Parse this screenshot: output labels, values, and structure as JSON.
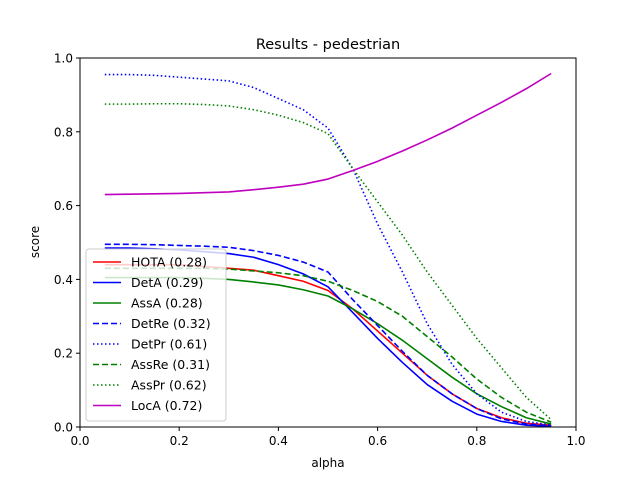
{
  "chart_data": {
    "type": "line",
    "title": "Results - pedestrian",
    "xlabel": "alpha",
    "ylabel": "score",
    "xlim": [
      0.0,
      1.0
    ],
    "ylim": [
      0.0,
      1.0
    ],
    "xticks": [
      "0.0",
      "0.2",
      "0.4",
      "0.6",
      "0.8",
      "1.0"
    ],
    "yticks": [
      "0.0",
      "0.2",
      "0.4",
      "0.6",
      "0.8",
      "1.0"
    ],
    "grid": false,
    "legend_position": "lower-left",
    "x": [
      0.05,
      0.1,
      0.15,
      0.2,
      0.25,
      0.3,
      0.35,
      0.4,
      0.45,
      0.5,
      0.55,
      0.6,
      0.65,
      0.7,
      0.75,
      0.8,
      0.85,
      0.9,
      0.95
    ],
    "series": [
      {
        "name": "HOTA (0.28)",
        "color": "#ff0000",
        "style": "solid",
        "values": [
          0.44,
          0.44,
          0.44,
          0.44,
          0.435,
          0.43,
          0.425,
          0.41,
          0.395,
          0.37,
          0.32,
          0.26,
          0.2,
          0.14,
          0.09,
          0.05,
          0.025,
          0.01,
          0.005
        ]
      },
      {
        "name": "DetA (0.29)",
        "color": "#0000ff",
        "style": "solid",
        "values": [
          0.485,
          0.485,
          0.483,
          0.48,
          0.475,
          0.47,
          0.46,
          0.44,
          0.415,
          0.38,
          0.31,
          0.24,
          0.175,
          0.115,
          0.07,
          0.035,
          0.015,
          0.005,
          0.002
        ]
      },
      {
        "name": "AssA (0.28)",
        "color": "#008000",
        "style": "solid",
        "values": [
          0.405,
          0.405,
          0.405,
          0.405,
          0.403,
          0.4,
          0.393,
          0.385,
          0.372,
          0.355,
          0.32,
          0.28,
          0.235,
          0.185,
          0.135,
          0.09,
          0.055,
          0.025,
          0.008
        ]
      },
      {
        "name": "DetRe (0.32)",
        "color": "#0000ff",
        "style": "dashed",
        "values": [
          0.495,
          0.495,
          0.494,
          0.492,
          0.49,
          0.487,
          0.478,
          0.465,
          0.447,
          0.42,
          0.345,
          0.275,
          0.205,
          0.14,
          0.09,
          0.05,
          0.022,
          0.008,
          0.003
        ]
      },
      {
        "name": "DetPr (0.61)",
        "color": "#0000ff",
        "style": "dotted",
        "values": [
          0.955,
          0.955,
          0.953,
          0.948,
          0.943,
          0.938,
          0.92,
          0.89,
          0.86,
          0.81,
          0.7,
          0.55,
          0.42,
          0.28,
          0.17,
          0.09,
          0.04,
          0.015,
          0.005
        ]
      },
      {
        "name": "AssRe (0.31)",
        "color": "#008000",
        "style": "dashed",
        "values": [
          0.43,
          0.43,
          0.43,
          0.43,
          0.43,
          0.428,
          0.423,
          0.418,
          0.41,
          0.395,
          0.37,
          0.34,
          0.3,
          0.245,
          0.19,
          0.13,
          0.08,
          0.04,
          0.013
        ]
      },
      {
        "name": "AssPr (0.62)",
        "color": "#008000",
        "style": "dotted",
        "values": [
          0.875,
          0.875,
          0.876,
          0.876,
          0.874,
          0.87,
          0.86,
          0.845,
          0.825,
          0.795,
          0.7,
          0.61,
          0.52,
          0.42,
          0.33,
          0.24,
          0.16,
          0.08,
          0.02
        ]
      },
      {
        "name": "LocA (0.72)",
        "color": "#bf00bf",
        "style": "solid",
        "values": [
          0.63,
          0.631,
          0.632,
          0.633,
          0.635,
          0.637,
          0.643,
          0.65,
          0.658,
          0.672,
          0.695,
          0.72,
          0.748,
          0.778,
          0.81,
          0.845,
          0.88,
          0.917,
          0.958
        ]
      }
    ]
  }
}
